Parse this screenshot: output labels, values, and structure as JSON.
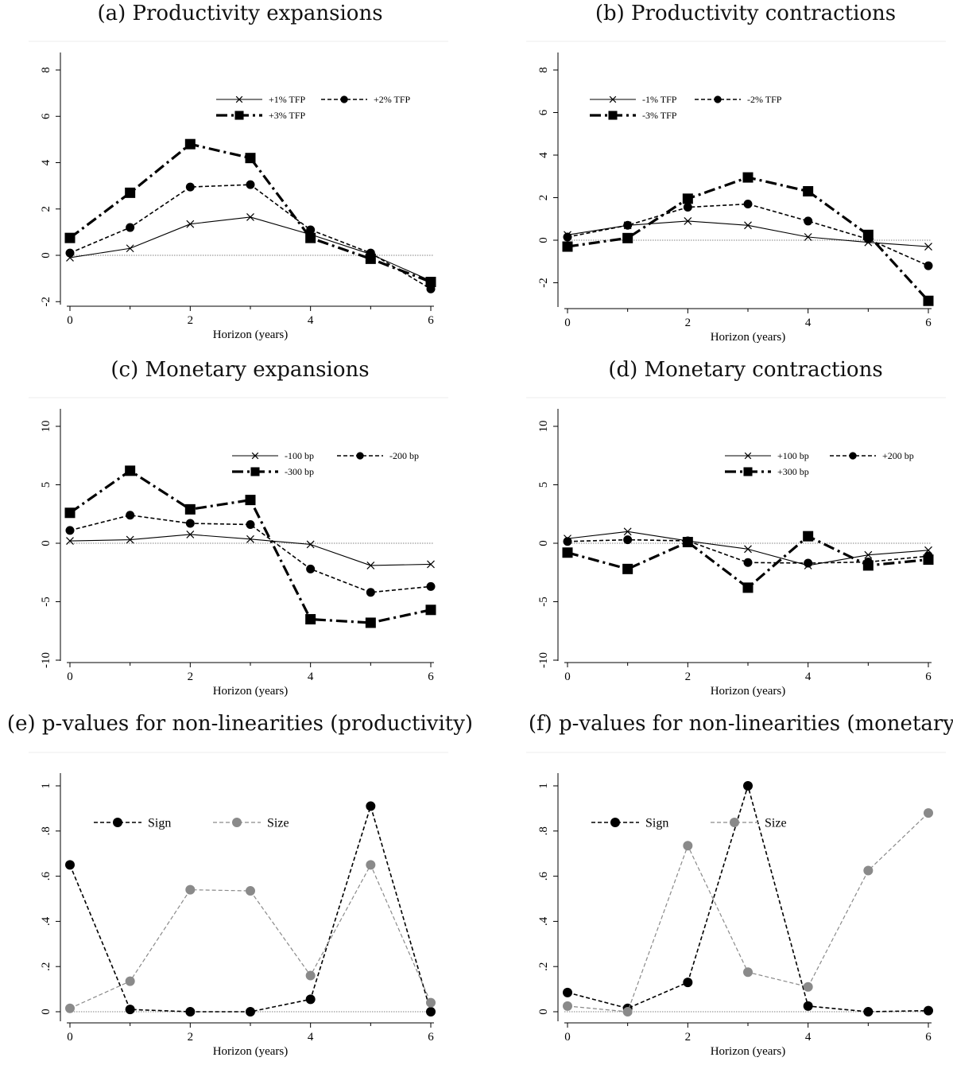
{
  "chart_data": [
    {
      "type": "line",
      "title": "(a) Productivity expansions",
      "xlabel": "Horizon (years)",
      "ylabel": "",
      "x": [
        0,
        1,
        2,
        3,
        4,
        5,
        6
      ],
      "xlim": [
        0,
        6
      ],
      "ylim": [
        -2,
        8
      ],
      "xticks": [
        "0",
        "2",
        "4",
        "6"
      ],
      "yticks": [
        "-2",
        "0",
        "2",
        "4",
        "6",
        "8"
      ],
      "zero_line": true,
      "legend": "top-right",
      "series": [
        {
          "name": "+1% TFP",
          "style": "thin-x",
          "values": [
            -0.1,
            0.3,
            1.35,
            1.65,
            0.9,
            0.05,
            -1.1
          ]
        },
        {
          "name": "+2% TFP",
          "style": "dash-dot",
          "values": [
            0.1,
            1.2,
            2.95,
            3.05,
            1.1,
            0.1,
            -1.45
          ]
        },
        {
          "name": "+3% TFP",
          "style": "thick-square",
          "values": [
            0.75,
            2.7,
            4.8,
            4.2,
            0.75,
            -0.15,
            -1.15
          ]
        }
      ]
    },
    {
      "type": "line",
      "title": "(b) Productivity contractions",
      "xlabel": "Horizon (years)",
      "ylabel": "",
      "x": [
        0,
        1,
        2,
        3,
        4,
        5,
        6
      ],
      "xlim": [
        0,
        6
      ],
      "ylim": [
        -3,
        8
      ],
      "xticks": [
        "0",
        "2",
        "4",
        "6"
      ],
      "yticks": [
        "-2",
        "0",
        "2",
        "4",
        "6",
        "8"
      ],
      "zero_line": true,
      "legend": "top-right",
      "series": [
        {
          "name": "-1% TFP",
          "style": "thin-x",
          "values": [
            0.25,
            0.7,
            0.9,
            0.7,
            0.15,
            -0.1,
            -0.3
          ]
        },
        {
          "name": "-2% TFP",
          "style": "dash-dot",
          "values": [
            0.15,
            0.7,
            1.55,
            1.7,
            0.9,
            0.05,
            -1.2
          ]
        },
        {
          "name": "-3% TFP",
          "style": "thick-square",
          "values": [
            -0.3,
            0.1,
            1.95,
            2.95,
            2.3,
            0.25,
            -2.85
          ]
        }
      ]
    },
    {
      "type": "line",
      "title": "(c) Monetary expansions",
      "xlabel": "Horizon (years)",
      "ylabel": "",
      "x": [
        0,
        1,
        2,
        3,
        4,
        5,
        6
      ],
      "xlim": [
        0,
        6
      ],
      "ylim": [
        -10,
        10
      ],
      "xticks": [
        "0",
        "2",
        "4",
        "6"
      ],
      "yticks": [
        "-10",
        "-5",
        "0",
        "5",
        "10"
      ],
      "zero_line": true,
      "legend": "top-right",
      "series": [
        {
          "name": "-100 bp",
          "style": "thin-x",
          "values": [
            0.2,
            0.3,
            0.75,
            0.35,
            -0.1,
            -1.9,
            -1.8
          ]
        },
        {
          "name": "-200 bp",
          "style": "dash-dot",
          "values": [
            1.1,
            2.4,
            1.7,
            1.6,
            -2.2,
            -4.2,
            -3.7
          ]
        },
        {
          "name": "-300 bp",
          "style": "thick-square",
          "values": [
            2.6,
            6.2,
            2.9,
            3.7,
            -6.5,
            -6.8,
            -5.7
          ]
        }
      ]
    },
    {
      "type": "line",
      "title": "(d) Monetary contractions",
      "xlabel": "Horizon (years)",
      "ylabel": "",
      "x": [
        0,
        1,
        2,
        3,
        4,
        5,
        6
      ],
      "xlim": [
        0,
        6
      ],
      "ylim": [
        -10,
        10
      ],
      "xticks": [
        "0",
        "2",
        "4",
        "6"
      ],
      "yticks": [
        "-10",
        "-5",
        "0",
        "5",
        "10"
      ],
      "zero_line": true,
      "legend": "top-right",
      "series": [
        {
          "name": "+100 bp",
          "style": "thin-x",
          "values": [
            0.4,
            1.0,
            0.2,
            -0.5,
            -1.9,
            -1.0,
            -0.6
          ]
        },
        {
          "name": "+200 bp",
          "style": "dash-dot",
          "values": [
            0.15,
            0.3,
            0.2,
            -1.65,
            -1.7,
            -1.6,
            -1.1
          ]
        },
        {
          "name": "+300 bp",
          "style": "thick-square",
          "values": [
            -0.8,
            -2.2,
            0.1,
            -3.8,
            0.6,
            -1.9,
            -1.4
          ]
        }
      ]
    },
    {
      "type": "line",
      "title": "(e) p-values for non-linearities (productivity)",
      "xlabel": "Horizon (years)",
      "ylabel": "",
      "x": [
        0,
        1,
        2,
        3,
        4,
        5,
        6
      ],
      "xlim": [
        0,
        6
      ],
      "ylim": [
        0,
        1
      ],
      "xticks": [
        "0",
        "2",
        "4",
        "6"
      ],
      "yticks": [
        "0",
        ".2",
        ".4",
        ".6",
        ".8",
        "1"
      ],
      "zero_line": true,
      "legend": "top-left",
      "series": [
        {
          "name": "Sign",
          "style": "pval-black",
          "values": [
            0.65,
            0.01,
            0.0,
            0.0,
            0.055,
            0.91,
            0.0
          ]
        },
        {
          "name": "Size",
          "style": "pval-gray",
          "values": [
            0.015,
            0.135,
            0.54,
            0.535,
            0.16,
            0.65,
            0.04
          ]
        }
      ]
    },
    {
      "type": "line",
      "title": "(f) p-values for non-linearities (monetary)",
      "xlabel": "Horizon (years)",
      "ylabel": "",
      "x": [
        0,
        1,
        2,
        3,
        4,
        5,
        6
      ],
      "xlim": [
        0,
        6
      ],
      "ylim": [
        0,
        1
      ],
      "xticks": [
        "0",
        "2",
        "4",
        "6"
      ],
      "yticks": [
        "0",
        ".2",
        ".4",
        ".6",
        ".8",
        "1"
      ],
      "zero_line": true,
      "legend": "top-left",
      "series": [
        {
          "name": "Sign",
          "style": "pval-black",
          "values": [
            0.085,
            0.015,
            0.13,
            1.0,
            0.025,
            0.0,
            0.005
          ]
        },
        {
          "name": "Size",
          "style": "pval-gray",
          "values": [
            0.025,
            0.0,
            0.735,
            0.175,
            0.11,
            0.625,
            0.88
          ]
        }
      ]
    }
  ]
}
